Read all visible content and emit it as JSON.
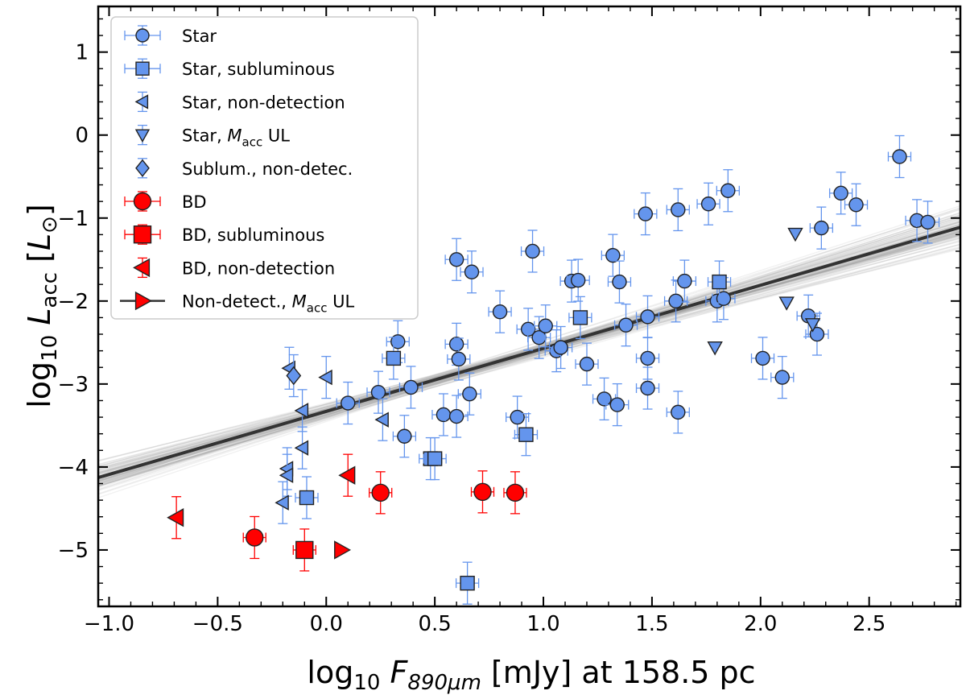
{
  "chart_data": {
    "type": "scatter",
    "xlabel": "log₁₀ F₈₉₀μm [mJy] at 158.5 pc",
    "xlabel_parts": {
      "log": "log",
      "sub10": "10",
      "F": "F",
      "Fsub": "890μm",
      "rest": " [mJy] at 158.5 pc"
    },
    "ylabel": "log₁₀ L_acc [L⊙]",
    "ylabel_parts": {
      "log": "log",
      "sub10": "10",
      "L": "L",
      "Lsub": "acc",
      "unit_L": "L",
      "unit_sub": "⊙"
    },
    "xlim": [
      -1.05,
      2.92
    ],
    "ylim": [
      -5.68,
      1.55
    ],
    "xticks": [
      -1.0,
      -0.5,
      0.0,
      0.5,
      1.0,
      1.5,
      2.0,
      2.5
    ],
    "xtick_labels": [
      "−1.0",
      "−0.5",
      "0.0",
      "0.5",
      "1.0",
      "1.5",
      "2.0",
      "2.5"
    ],
    "yticks": [
      -5,
      -4,
      -3,
      -2,
      -1,
      0,
      1
    ],
    "ytick_labels": [
      "−5",
      "−4",
      "−3",
      "−2",
      "−1",
      "0",
      "1"
    ],
    "fit": {
      "slope": 0.76,
      "intercept": -3.33,
      "posterior_lines": 90
    },
    "legend": [
      {
        "label": "Star",
        "marker": "circle",
        "color": "#6495ED"
      },
      {
        "label": "Star, subluminous",
        "marker": "square",
        "color": "#6495ED"
      },
      {
        "label": "Star, non-detection",
        "marker": "triangle-left",
        "color": "#6495ED"
      },
      {
        "label": "Star, M_acc UL",
        "prefix": "Star, ",
        "M": "M",
        "Msub": "acc",
        "suffix": " UL",
        "marker": "triangle-down",
        "color": "#6495ED"
      },
      {
        "label": "Sublum., non-detec.",
        "marker": "diamond",
        "color": "#6495ED"
      },
      {
        "label": "BD",
        "marker": "circle",
        "color": "#FF0000"
      },
      {
        "label": "BD, subluminous",
        "marker": "square",
        "color": "#FF0000"
      },
      {
        "label": "BD, non-detection",
        "marker": "triangle-left",
        "color": "#FF0000"
      },
      {
        "label": "Non-detect., M_acc UL",
        "prefix": "Non-detect., ",
        "M": "M",
        "Msub": "acc",
        "suffix": " UL",
        "marker": "triangle-right",
        "color": "#FF0000"
      }
    ],
    "series": [
      {
        "name": "Star",
        "marker": "circle",
        "color": "#6495ED",
        "points": [
          [
            0.6,
            -1.5
          ],
          [
            0.67,
            -1.65
          ],
          [
            0.95,
            -1.4
          ],
          [
            0.8,
            -2.13
          ],
          [
            0.6,
            -2.52
          ],
          [
            0.61,
            -2.7
          ],
          [
            0.33,
            -2.49
          ],
          [
            0.93,
            -2.34
          ],
          [
            0.98,
            -2.44
          ],
          [
            1.01,
            -2.3
          ],
          [
            1.06,
            -2.6
          ],
          [
            1.08,
            -2.56
          ],
          [
            1.13,
            -1.76
          ],
          [
            1.16,
            -1.75
          ],
          [
            1.2,
            -2.76
          ],
          [
            1.32,
            -1.45
          ],
          [
            1.35,
            -1.77
          ],
          [
            1.38,
            -2.29
          ],
          [
            1.28,
            -3.18
          ],
          [
            1.34,
            -3.25
          ],
          [
            1.47,
            -0.95
          ],
          [
            1.48,
            -2.19
          ],
          [
            1.48,
            -2.69
          ],
          [
            1.48,
            -3.05
          ],
          [
            1.62,
            -0.9
          ],
          [
            1.61,
            -2.0
          ],
          [
            1.62,
            -3.34
          ],
          [
            1.65,
            -1.76
          ],
          [
            1.76,
            -0.83
          ],
          [
            1.85,
            -0.67
          ],
          [
            1.8,
            -2.0
          ],
          [
            1.83,
            -1.97
          ],
          [
            2.01,
            -2.69
          ],
          [
            2.1,
            -2.92
          ],
          [
            2.22,
            -2.18
          ],
          [
            2.26,
            -2.4
          ],
          [
            2.28,
            -1.12
          ],
          [
            2.37,
            -0.7
          ],
          [
            2.44,
            -0.84
          ],
          [
            2.64,
            -0.26
          ],
          [
            2.72,
            -1.03
          ],
          [
            2.77,
            -1.05
          ],
          [
            0.1,
            -3.23
          ],
          [
            0.24,
            -3.1
          ],
          [
            0.39,
            -3.04
          ],
          [
            0.36,
            -3.63
          ],
          [
            0.54,
            -3.37
          ],
          [
            0.6,
            -3.39
          ],
          [
            0.66,
            -3.12
          ],
          [
            0.88,
            -3.4
          ]
        ]
      },
      {
        "name": "Star, subluminous",
        "marker": "square",
        "color": "#6495ED",
        "points": [
          [
            0.31,
            -2.69
          ],
          [
            0.48,
            -3.9
          ],
          [
            0.5,
            -3.9
          ],
          [
            0.92,
            -3.61
          ],
          [
            1.17,
            -2.2
          ],
          [
            1.81,
            -1.77
          ],
          [
            -0.09,
            -4.37
          ],
          [
            0.65,
            -5.4
          ]
        ]
      },
      {
        "name": "Star, non-detection",
        "marker": "triangle-left",
        "color": "#6495ED",
        "points": [
          [
            -0.17,
            -2.81
          ],
          [
            0.0,
            -2.92
          ],
          [
            0.26,
            -3.43
          ],
          [
            -0.11,
            -3.32
          ],
          [
            -0.11,
            -3.77
          ],
          [
            -0.18,
            -4.02
          ],
          [
            -0.18,
            -4.1
          ],
          [
            -0.2,
            -4.43
          ]
        ]
      },
      {
        "name": "Star, M_acc UL",
        "marker": "triangle-down",
        "color": "#6495ED",
        "points": [
          [
            2.16,
            -1.19
          ],
          [
            2.12,
            -2.02
          ],
          [
            1.79,
            -2.56
          ],
          [
            2.24,
            -2.28
          ]
        ]
      },
      {
        "name": "Sublum., non-detec.",
        "marker": "diamond",
        "color": "#6495ED",
        "points": [
          [
            -0.15,
            -2.9
          ]
        ]
      },
      {
        "name": "BD",
        "marker": "circle",
        "color": "#FF0000",
        "points": [
          [
            -0.33,
            -4.85
          ],
          [
            0.25,
            -4.31
          ],
          [
            0.72,
            -4.3
          ],
          [
            0.87,
            -4.31
          ]
        ]
      },
      {
        "name": "BD, subluminous",
        "marker": "square",
        "color": "#FF0000",
        "points": [
          [
            -0.1,
            -5.0
          ]
        ]
      },
      {
        "name": "BD, non-detection",
        "marker": "triangle-left",
        "color": "#FF0000",
        "points": [
          [
            -0.69,
            -4.61
          ],
          [
            0.1,
            -4.1
          ]
        ]
      },
      {
        "name": "Non-detect., M_acc UL",
        "marker": "triangle-right",
        "color": "#FF0000",
        "points": [
          [
            0.07,
            -5.0
          ]
        ]
      }
    ]
  }
}
